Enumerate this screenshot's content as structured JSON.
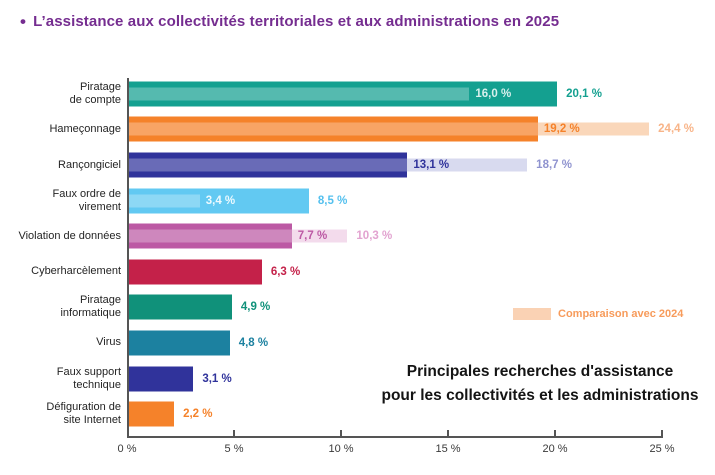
{
  "title": {
    "bullet": "•",
    "text": "L’assistance aux collectivités territoriales et aux administrations en 2025",
    "color": "#752D90"
  },
  "chart_data": {
    "type": "bar",
    "orientation": "horizontal",
    "unit": "%",
    "title": "L’assistance aux collectivités territoriales et aux administrations en 2025",
    "x_axis": {
      "min": 0,
      "max": 25,
      "tick_step": 5,
      "tick_labels": [
        "0 %",
        "5 %",
        "10 %",
        "15 %",
        "20 %",
        "25 %"
      ],
      "grid": false
    },
    "series_names": [
      "2025",
      "Comparaison avec 2024"
    ],
    "bars": [
      {
        "category": "Piratage de compte",
        "label_lines": [
          "Piratage",
          "de compte"
        ],
        "value_2025": 20.1,
        "display_2025": "20,1 %",
        "value_2024": 16.0,
        "display_2024": "16,0 %",
        "comparison_style": "inside",
        "color": "#14A090",
        "label_color_2025": "#14A090",
        "pale_color": "#BFE5E1",
        "label_color_2024": "#D8F0ED"
      },
      {
        "category": "Hameçonnage",
        "label_lines": [
          "Hameçonnage"
        ],
        "value_2025": 19.2,
        "display_2025": "19,2 %",
        "value_2024": 24.4,
        "display_2024": "24,4 %",
        "comparison_style": "extension",
        "color": "#F5822A",
        "label_color_2025": "#F5822A",
        "pale_color": "#FAD7BA",
        "label_color_2024": "#F8B488"
      },
      {
        "category": "Rançongiciel",
        "label_lines": [
          "Rançongiciel"
        ],
        "value_2025": 13.1,
        "display_2025": "13,1 %",
        "value_2024": 18.7,
        "display_2024": "18,7 %",
        "comparison_style": "extension",
        "color": "#30339B",
        "label_color_2025": "#30339B",
        "pale_color": "#D8DAEF",
        "label_color_2024": "#8F93CF"
      },
      {
        "category": "Faux ordre de virement",
        "label_lines": [
          "Faux ordre de",
          "virement"
        ],
        "value_2025": 8.5,
        "display_2025": "8,5 %",
        "value_2024": 3.4,
        "display_2024": "3,4 %",
        "comparison_style": "inside",
        "color": "#62C9F2",
        "label_color_2025": "#54C0EE",
        "pale_color": "#D3F0FB",
        "label_color_2024": "#EDFAFF"
      },
      {
        "category": "Violation de données",
        "label_lines": [
          "Violation de données"
        ],
        "value_2025": 7.7,
        "display_2025": "7,7 %",
        "value_2024": 10.3,
        "display_2024": "10,3 %",
        "comparison_style": "extension",
        "color": "#BC59A4",
        "label_color_2025": "#BC59A4",
        "pale_color": "#F3DBEC",
        "label_color_2024": "#E2A3D0"
      },
      {
        "category": "Cyberharcèlement",
        "label_lines": [
          "Cyberharcèlement"
        ],
        "value_2025": 6.3,
        "display_2025": "6,3 %",
        "value_2024": null,
        "display_2024": null,
        "comparison_style": "none",
        "color": "#C42149",
        "label_color_2025": "#C42149",
        "pale_color": null,
        "label_color_2024": null
      },
      {
        "category": "Piratage informatique",
        "label_lines": [
          "Piratage",
          "informatique"
        ],
        "value_2025": 4.9,
        "display_2025": "4,9 %",
        "value_2024": null,
        "display_2024": null,
        "comparison_style": "none",
        "color": "#10917A",
        "label_color_2025": "#10917A",
        "pale_color": null,
        "label_color_2024": null
      },
      {
        "category": "Virus",
        "label_lines": [
          "Virus"
        ],
        "value_2025": 4.8,
        "display_2025": "4,8 %",
        "value_2024": null,
        "display_2024": null,
        "comparison_style": "none",
        "color": "#1C81A0",
        "label_color_2025": "#1C81A0",
        "pale_color": null,
        "label_color_2024": null
      },
      {
        "category": "Faux support technique",
        "label_lines": [
          "Faux support",
          "technique"
        ],
        "value_2025": 3.1,
        "display_2025": "3,1 %",
        "value_2024": null,
        "display_2024": null,
        "comparison_style": "none",
        "color": "#30339B",
        "label_color_2025": "#30339B",
        "pale_color": null,
        "label_color_2024": null
      },
      {
        "category": "Défiguration de site Internet",
        "label_lines": [
          "Défiguration de",
          "site Internet"
        ],
        "value_2025": 2.2,
        "display_2025": "2,2 %",
        "value_2024": null,
        "display_2024": null,
        "comparison_style": "none",
        "color": "#F5822A",
        "label_color_2025": "#F5822A",
        "pale_color": null,
        "label_color_2024": null
      }
    ],
    "legend": {
      "label": "Comparaison avec 2024",
      "swatch_color": "#FAD2B4",
      "text_color": "#F79B5B",
      "position": "right-middle"
    },
    "caption_lines": [
      "Principales recherches d'assistance",
      "pour les collectivités et les administrations"
    ]
  }
}
